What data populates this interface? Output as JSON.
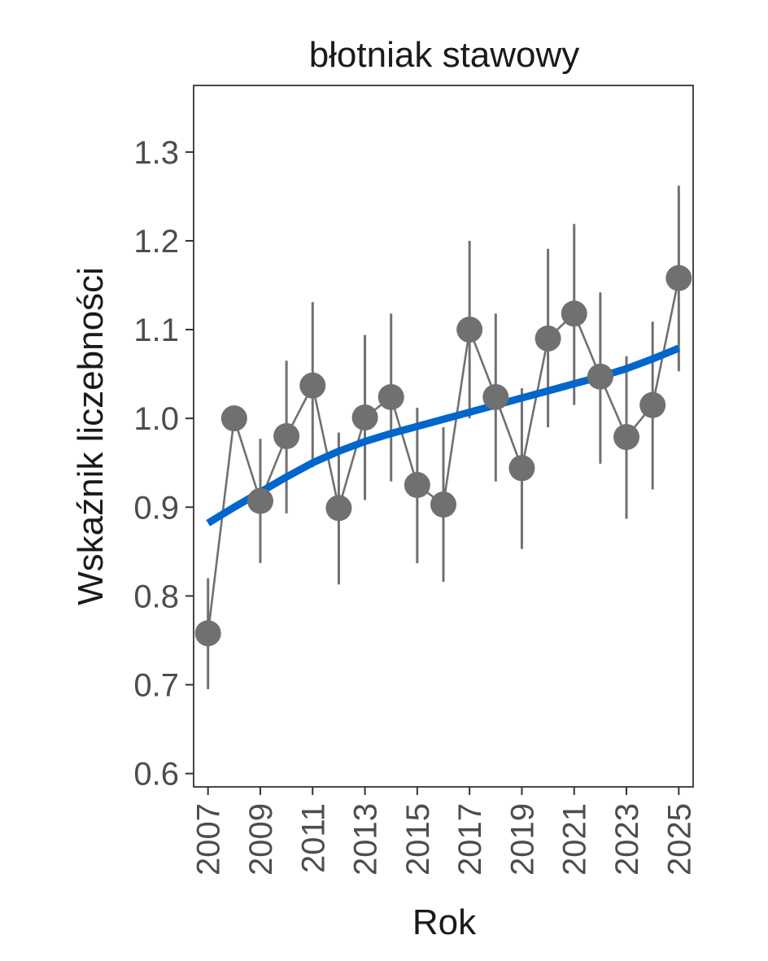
{
  "chart_data": {
    "type": "line",
    "title": "błotniak stawowy",
    "xlabel": "Rok",
    "ylabel": "Wskaźnik liczebności",
    "ylim": [
      0.585,
      1.375
    ],
    "xlim": [
      2006.45,
      2025.55
    ],
    "x_ticks": [
      2007,
      2009,
      2011,
      2013,
      2015,
      2017,
      2019,
      2021,
      2023,
      2025
    ],
    "y_ticks": [
      0.6,
      0.7,
      0.8,
      0.9,
      1.0,
      1.1,
      1.2,
      1.3
    ],
    "y_tick_labels": [
      "0.6",
      "0.7",
      "0.8",
      "0.9",
      "1.0",
      "1.1",
      "1.2",
      "1.3"
    ],
    "x_tick_labels": [
      "2007",
      "2009",
      "2011",
      "2013",
      "2015",
      "2017",
      "2019",
      "2021",
      "2023",
      "2025"
    ],
    "grid": false,
    "series": [
      {
        "x": [
          2007,
          2008,
          2009,
          2010,
          2011,
          2012,
          2013,
          2014,
          2015,
          2016,
          2017,
          2018,
          2019,
          2020,
          2021,
          2022,
          2023,
          2024,
          2025
        ],
        "values": [
          0.758,
          1.0,
          0.907,
          0.98,
          1.037,
          0.899,
          1.001,
          1.024,
          0.925,
          0.903,
          1.1,
          1.024,
          0.944,
          1.09,
          1.118,
          1.047,
          0.979,
          1.015,
          1.158
        ],
        "lower": [
          0.695,
          1.0,
          0.837,
          0.893,
          0.945,
          0.813,
          0.908,
          0.929,
          0.837,
          0.816,
          1.0,
          0.929,
          0.853,
          0.99,
          1.015,
          0.949,
          0.887,
          0.92,
          1.053
        ],
        "upper": [
          0.82,
          1.0,
          0.977,
          1.065,
          1.131,
          0.984,
          1.094,
          1.118,
          1.012,
          0.99,
          1.2,
          1.118,
          1.034,
          1.191,
          1.219,
          1.142,
          1.07,
          1.109,
          1.262
        ],
        "color": "#707070"
      },
      {
        "type": "trend",
        "x": [
          2007,
          2008,
          2009,
          2010,
          2011,
          2012,
          2013,
          2014,
          2015,
          2016,
          2017,
          2018,
          2019,
          2020,
          2021,
          2022,
          2023,
          2024,
          2025
        ],
        "values": [
          0.882,
          0.9,
          0.917,
          0.934,
          0.95,
          0.963,
          0.974,
          0.983,
          0.991,
          0.999,
          1.007,
          1.015,
          1.023,
          1.031,
          1.039,
          1.047,
          1.056,
          1.067,
          1.079
        ],
        "color": "#0066cc"
      }
    ]
  }
}
